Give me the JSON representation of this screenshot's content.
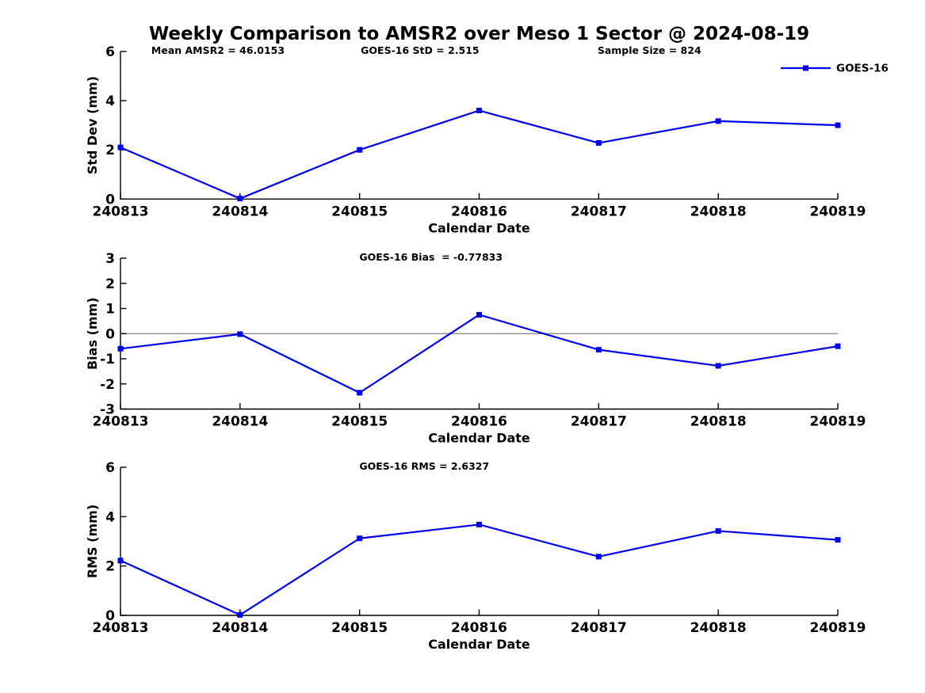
{
  "title": "Weekly Comparison to AMSR2 over Meso 1 Sector @ 2024-08-19",
  "colors": {
    "line": "#0000EE",
    "axis": "#000000",
    "text": "#000000",
    "zero_line": "#808080",
    "background": "#FFFFFF"
  },
  "stats": {
    "mean_amsr2": 46.0153,
    "goes16_std": 2.515,
    "sample_size": 824,
    "goes16_bias": -0.77833,
    "goes16_rms": 2.6327
  },
  "chart_data": [
    {
      "type": "line",
      "name": "std-dev",
      "ylabel": "Std Dev (mm)",
      "xlabel": "Calendar Date",
      "categories": [
        "240813",
        "240814",
        "240815",
        "240816",
        "240817",
        "240818",
        "240819"
      ],
      "ylim": [
        0,
        6
      ],
      "yticks": [
        0,
        2,
        4,
        6
      ],
      "grid": false,
      "zero_line": false,
      "annotations": [
        {
          "text": "Mean AMSR2 = 46.0153",
          "fx": 0.043
        },
        {
          "text": "GOES-16 StD = 2.515",
          "fx": 0.335
        },
        {
          "text": "Sample Size = 824",
          "fx": 0.665
        }
      ],
      "legend": {
        "show": true,
        "label": "GOES-16",
        "position": "top-right"
      },
      "series": [
        {
          "name": "GOES-16",
          "marker": "square",
          "values": [
            2.1,
            0.02,
            2.0,
            3.6,
            2.28,
            3.17,
            3.0
          ]
        }
      ]
    },
    {
      "type": "line",
      "name": "bias",
      "ylabel": "Bias (mm)",
      "xlabel": "Calendar Date",
      "categories": [
        "240813",
        "240814",
        "240815",
        "240816",
        "240817",
        "240818",
        "240819"
      ],
      "ylim": [
        -3,
        3
      ],
      "yticks": [
        -3,
        -2,
        -1,
        0,
        1,
        2,
        3
      ],
      "grid": false,
      "zero_line": true,
      "annotations": [
        {
          "text": "GOES-16 Bias  = -0.77833",
          "fx": 0.333
        }
      ],
      "legend": {
        "show": false,
        "label": "GOES-16",
        "position": "top-right"
      },
      "series": [
        {
          "name": "GOES-16",
          "marker": "square",
          "values": [
            -0.6,
            -0.02,
            -2.35,
            0.75,
            -0.64,
            -1.28,
            -0.5
          ]
        }
      ]
    },
    {
      "type": "line",
      "name": "rms",
      "ylabel": "RMS (mm)",
      "xlabel": "Calendar Date",
      "categories": [
        "240813",
        "240814",
        "240815",
        "240816",
        "240817",
        "240818",
        "240819"
      ],
      "ylim": [
        0,
        6
      ],
      "yticks": [
        0,
        2,
        4,
        6
      ],
      "grid": false,
      "zero_line": false,
      "annotations": [
        {
          "text": "GOES-16 RMS = 2.6327",
          "fx": 0.333
        }
      ],
      "legend": {
        "show": false,
        "label": "GOES-16",
        "position": "top-right"
      },
      "series": [
        {
          "name": "GOES-16",
          "marker": "square",
          "values": [
            2.22,
            0.02,
            3.12,
            3.68,
            2.38,
            3.42,
            3.06
          ]
        }
      ]
    }
  ]
}
